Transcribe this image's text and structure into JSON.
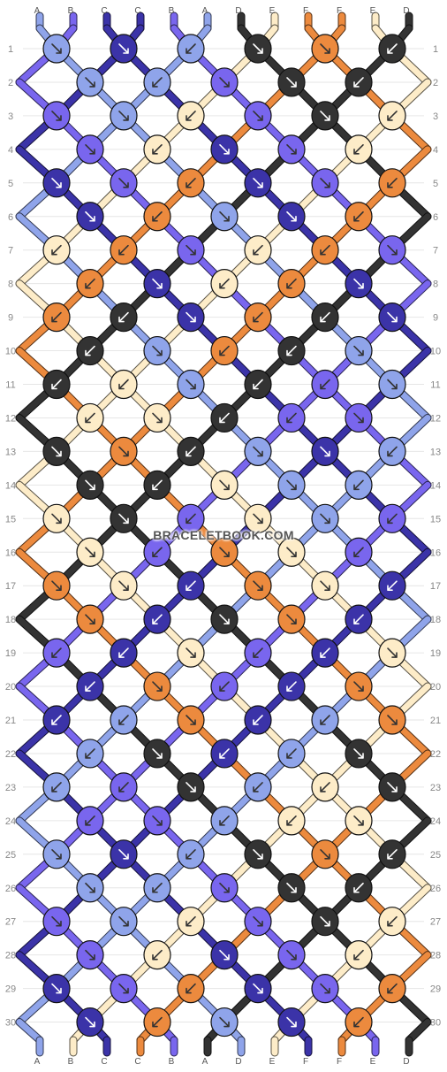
{
  "pattern": {
    "colors": {
      "A": "#8fa4ea",
      "B": "#7966ee",
      "C": "#3b33a8",
      "D": "#333333",
      "E": "#fdecc8",
      "F": "#ec8a3e"
    },
    "top_letters": [
      "A",
      "B",
      "C",
      "C",
      "B",
      "A",
      "D",
      "E",
      "F",
      "F",
      "E",
      "D"
    ],
    "bottom_letters": [
      "A",
      "B",
      "C",
      "C",
      "B",
      "A",
      "D",
      "E",
      "F",
      "F",
      "E",
      "D"
    ],
    "rows": [
      "1",
      "2",
      "3",
      "4",
      "5",
      "6",
      "7",
      "8",
      "9",
      "10",
      "11",
      "12",
      "13",
      "14",
      "15",
      "16",
      "17",
      "18",
      "19",
      "20",
      "21",
      "22",
      "23",
      "24",
      "25",
      "26",
      "27",
      "28",
      "29",
      "30"
    ]
  },
  "watermark": "BRACELETBOOK.COM"
}
